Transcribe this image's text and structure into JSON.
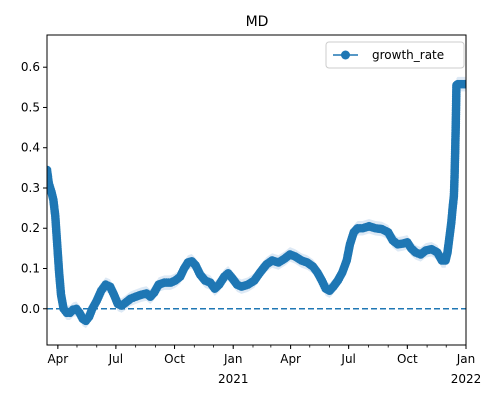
{
  "chart_data": {
    "type": "line",
    "title": "MD",
    "xlabel": "",
    "ylabel": "",
    "x_start": "2020-03-15",
    "x_end": "2022-01-01",
    "ylim": [
      -0.09,
      0.68
    ],
    "grid": false,
    "legend_position": "top-right",
    "x_ticks": [
      {
        "date": "2020-04-01",
        "label": "Apr",
        "sublabel": ""
      },
      {
        "date": "2020-07-01",
        "label": "Jul",
        "sublabel": ""
      },
      {
        "date": "2020-10-01",
        "label": "Oct",
        "sublabel": ""
      },
      {
        "date": "2021-01-01",
        "label": "Jan",
        "sublabel": "2021"
      },
      {
        "date": "2021-04-01",
        "label": "Apr",
        "sublabel": ""
      },
      {
        "date": "2021-07-01",
        "label": "Jul",
        "sublabel": ""
      },
      {
        "date": "2021-10-01",
        "label": "Oct",
        "sublabel": ""
      },
      {
        "date": "2022-01-01",
        "label": "Jan",
        "sublabel": "2022"
      }
    ],
    "y_ticks": [
      {
        "value": 0.0,
        "label": "0.0"
      },
      {
        "value": 0.1,
        "label": "0.1"
      },
      {
        "value": 0.2,
        "label": "0.2"
      },
      {
        "value": 0.3,
        "label": "0.3"
      },
      {
        "value": 0.4,
        "label": "0.4"
      },
      {
        "value": 0.5,
        "label": "0.5"
      },
      {
        "value": 0.6,
        "label": "0.6"
      }
    ],
    "reference_line": {
      "y": 0.0,
      "style": "dashed"
    },
    "series": [
      {
        "name": "growth_rate",
        "color": "#1f77b4",
        "band_color": "#c6dbef",
        "band_halfwidth": 0.018,
        "points": [
          [
            "2020-03-15",
            0.345
          ],
          [
            "2020-03-18",
            0.31
          ],
          [
            "2020-03-22",
            0.29
          ],
          [
            "2020-03-25",
            0.27
          ],
          [
            "2020-03-28",
            0.23
          ],
          [
            "2020-03-31",
            0.16
          ],
          [
            "2020-04-03",
            0.09
          ],
          [
            "2020-04-06",
            0.035
          ],
          [
            "2020-04-10",
            0.0
          ],
          [
            "2020-04-15",
            -0.01
          ],
          [
            "2020-04-20",
            -0.01
          ],
          [
            "2020-04-25",
            -0.002
          ],
          [
            "2020-04-30",
            0.0
          ],
          [
            "2020-05-05",
            -0.01
          ],
          [
            "2020-05-10",
            -0.025
          ],
          [
            "2020-05-15",
            -0.03
          ],
          [
            "2020-05-20",
            -0.02
          ],
          [
            "2020-05-25",
            0.0
          ],
          [
            "2020-06-01",
            0.02
          ],
          [
            "2020-06-08",
            0.045
          ],
          [
            "2020-06-15",
            0.06
          ],
          [
            "2020-06-22",
            0.055
          ],
          [
            "2020-06-28",
            0.035
          ],
          [
            "2020-07-04",
            0.012
          ],
          [
            "2020-07-10",
            0.008
          ],
          [
            "2020-07-16",
            0.015
          ],
          [
            "2020-07-24",
            0.025
          ],
          [
            "2020-08-01",
            0.03
          ],
          [
            "2020-08-10",
            0.035
          ],
          [
            "2020-08-18",
            0.038
          ],
          [
            "2020-08-24",
            0.03
          ],
          [
            "2020-08-30",
            0.04
          ],
          [
            "2020-09-06",
            0.06
          ],
          [
            "2020-09-15",
            0.065
          ],
          [
            "2020-09-25",
            0.065
          ],
          [
            "2020-10-02",
            0.07
          ],
          [
            "2020-10-10",
            0.08
          ],
          [
            "2020-10-16",
            0.1
          ],
          [
            "2020-10-22",
            0.115
          ],
          [
            "2020-10-28",
            0.118
          ],
          [
            "2020-11-03",
            0.108
          ],
          [
            "2020-11-10",
            0.085
          ],
          [
            "2020-11-18",
            0.07
          ],
          [
            "2020-11-26",
            0.065
          ],
          [
            "2020-12-03",
            0.05
          ],
          [
            "2020-12-10",
            0.06
          ],
          [
            "2020-12-18",
            0.08
          ],
          [
            "2020-12-24",
            0.088
          ],
          [
            "2020-12-31",
            0.075
          ],
          [
            "2021-01-07",
            0.06
          ],
          [
            "2021-01-14",
            0.055
          ],
          [
            "2021-01-24",
            0.06
          ],
          [
            "2021-02-03",
            0.07
          ],
          [
            "2021-02-12",
            0.09
          ],
          [
            "2021-02-22",
            0.11
          ],
          [
            "2021-03-03",
            0.12
          ],
          [
            "2021-03-13",
            0.115
          ],
          [
            "2021-03-23",
            0.125
          ],
          [
            "2021-03-31",
            0.135
          ],
          [
            "2021-04-08",
            0.13
          ],
          [
            "2021-04-18",
            0.12
          ],
          [
            "2021-04-27",
            0.115
          ],
          [
            "2021-05-06",
            0.105
          ],
          [
            "2021-05-13",
            0.09
          ],
          [
            "2021-05-20",
            0.07
          ],
          [
            "2021-05-26",
            0.05
          ],
          [
            "2021-06-01",
            0.045
          ],
          [
            "2021-06-07",
            0.055
          ],
          [
            "2021-06-14",
            0.07
          ],
          [
            "2021-06-21",
            0.09
          ],
          [
            "2021-06-28",
            0.12
          ],
          [
            "2021-07-03",
            0.16
          ],
          [
            "2021-07-09",
            0.19
          ],
          [
            "2021-07-15",
            0.2
          ],
          [
            "2021-07-23",
            0.2
          ],
          [
            "2021-08-02",
            0.205
          ],
          [
            "2021-08-12",
            0.2
          ],
          [
            "2021-08-22",
            0.198
          ],
          [
            "2021-09-01",
            0.19
          ],
          [
            "2021-09-08",
            0.17
          ],
          [
            "2021-09-16",
            0.16
          ],
          [
            "2021-09-24",
            0.162
          ],
          [
            "2021-10-01",
            0.165
          ],
          [
            "2021-10-07",
            0.15
          ],
          [
            "2021-10-14",
            0.14
          ],
          [
            "2021-10-22",
            0.135
          ],
          [
            "2021-10-30",
            0.145
          ],
          [
            "2021-11-08",
            0.148
          ],
          [
            "2021-11-17",
            0.14
          ],
          [
            "2021-11-24",
            0.12
          ],
          [
            "2021-11-30",
            0.12
          ],
          [
            "2021-12-03",
            0.14
          ],
          [
            "2021-12-05",
            0.165
          ],
          [
            "2021-12-07",
            0.19
          ],
          [
            "2021-12-09",
            0.215
          ],
          [
            "2021-12-11",
            0.25
          ],
          [
            "2021-12-13",
            0.28
          ],
          [
            "2021-12-14",
            0.325
          ],
          [
            "2021-12-15",
            0.39
          ],
          [
            "2021-12-16",
            0.46
          ],
          [
            "2021-12-17",
            0.555
          ],
          [
            "2021-12-19",
            0.558
          ],
          [
            "2021-12-21",
            0.558
          ],
          [
            "2021-12-23",
            0.558
          ],
          [
            "2021-12-25",
            0.558
          ],
          [
            "2021-12-27",
            0.558
          ],
          [
            "2021-12-29",
            0.558
          ],
          [
            "2021-12-31",
            0.558
          ]
        ]
      }
    ]
  }
}
